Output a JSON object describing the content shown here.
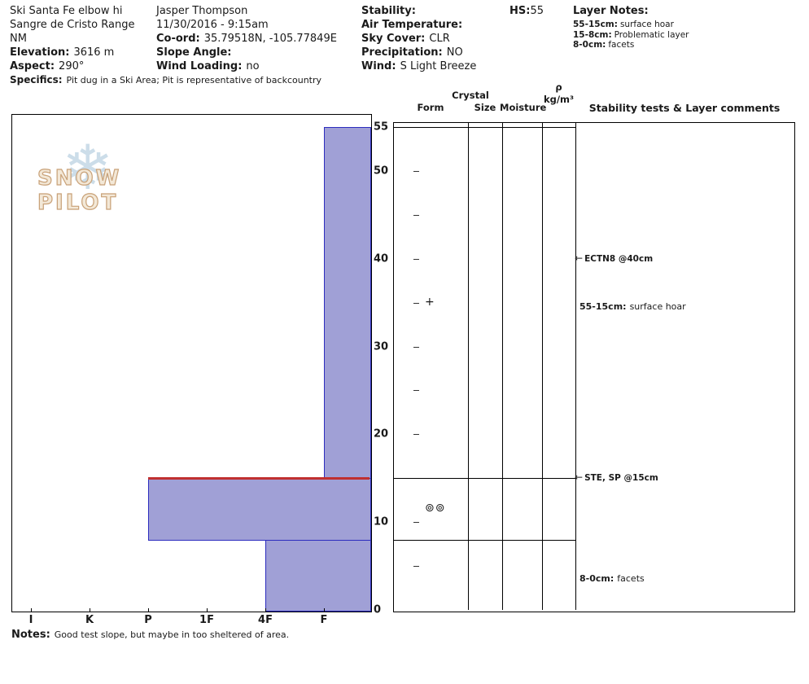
{
  "header": {
    "site": {
      "line1": "Ski Santa Fe elbow hi",
      "line2": "Sangre de Cristo Range",
      "line3": "NM",
      "elevation_label": "Elevation:",
      "elevation_value": "3616 m",
      "aspect_label": "Aspect:",
      "aspect_value": "290°",
      "specifics_label": "Specifics:",
      "specifics_value": "Pit dug in a Ski Area; Pit is representative of backcountry"
    },
    "observer": {
      "name": "Jasper Thompson",
      "datetime": "11/30/2016 - 9:15am",
      "coord_label": "Co-ord:",
      "coord_value": "35.79518N, -105.77849E",
      "slope_angle_label": "Slope Angle:",
      "slope_angle_value": "",
      "wind_loading_label": "Wind Loading:",
      "wind_loading_value": "no"
    },
    "weather": {
      "stability_label": "Stability:",
      "stability_value": "",
      "air_temp_label": "Air Temperature:",
      "air_temp_value": "",
      "sky_label": "Sky Cover:",
      "sky_value": "CLR",
      "precip_label": "Precipitation:",
      "precip_value": "NO",
      "wind_label": "Wind:",
      "wind_value": "S Light Breeze"
    },
    "hs": {
      "label": "HS:",
      "value": "55"
    },
    "layer_notes": {
      "title": "Layer Notes:",
      "items": [
        {
          "range": "55-15cm:",
          "text": "surface hoar"
        },
        {
          "range": "15-8cm:",
          "text": "Problematic layer"
        },
        {
          "range": "8-0cm:",
          "text": "facets"
        }
      ]
    }
  },
  "watermark": {
    "snowflake": "❄",
    "text": "SNOW PILOT"
  },
  "panel": {
    "crystal_header": "Crystal",
    "col_form": "Form",
    "col_size": "Size",
    "col_moisture": "Moisture",
    "rho": "ρ",
    "rho_unit": "kg/m³",
    "col_comments": "Stability tests & Layer comments"
  },
  "chart_data": {
    "type": "bar",
    "subtype": "snow-profile-hardness",
    "depth_axis": {
      "unit": "cm",
      "max": 55,
      "ticks": [
        0,
        10,
        20,
        30,
        40,
        50,
        55
      ]
    },
    "hardness_axis": {
      "categories": [
        "I",
        "K",
        "P",
        "1F",
        "4F",
        "F"
      ]
    },
    "layers": [
      {
        "top_cm": 55,
        "bottom_cm": 15,
        "hardness": "F"
      },
      {
        "top_cm": 15,
        "bottom_cm": 8,
        "hardness": "P",
        "flagged_problematic": true
      },
      {
        "top_cm": 8,
        "bottom_cm": 0,
        "hardness": "4F"
      }
    ],
    "crystal_symbols": [
      {
        "depth_cm": 35,
        "glyph": "+"
      },
      {
        "depth_cm": 11.5,
        "glyph": "⊚⊚"
      }
    ],
    "form_tick_depths": [
      5,
      10,
      20,
      25,
      30,
      35,
      40,
      45,
      50
    ],
    "stability_tests": [
      {
        "depth_cm": 40,
        "label": "ECTN8 @40cm"
      },
      {
        "depth_cm": 15,
        "label": "STE, SP @15cm"
      }
    ],
    "layer_comments": [
      {
        "depth_cm": 34.5,
        "range": "55-15cm:",
        "text": "surface hoar"
      },
      {
        "depth_cm": 3.5,
        "range": "8-0cm:",
        "text": "facets"
      }
    ],
    "colors": {
      "bar_fill": "#a0a0d6",
      "bar_border": "#2c2cbe",
      "problem_line": "#c03030"
    }
  },
  "notes": {
    "label": "Notes:",
    "text": "Good test slope, but maybe in too sheltered of area."
  }
}
